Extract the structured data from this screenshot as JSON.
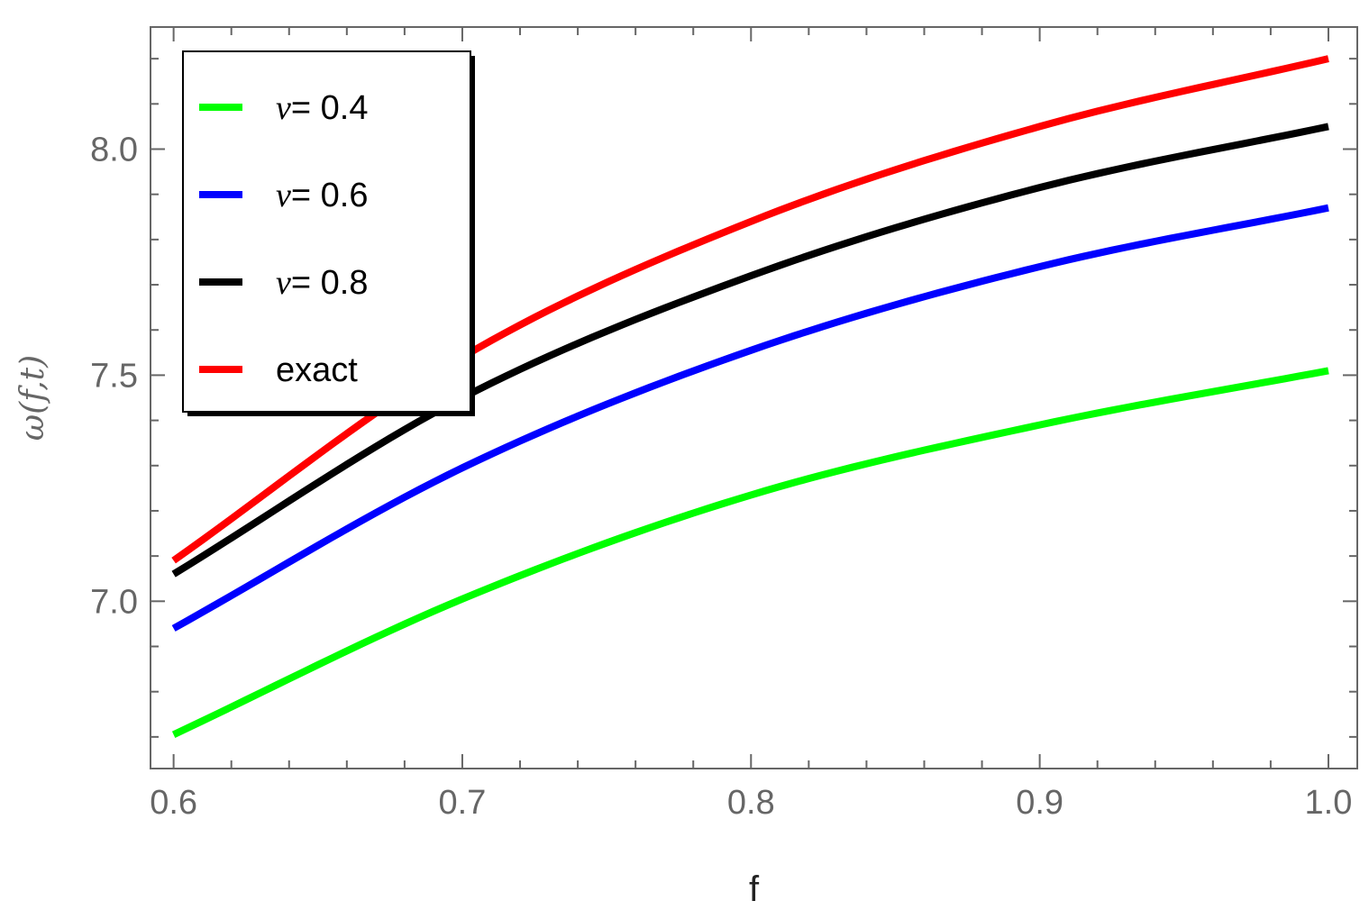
{
  "chart_data": {
    "type": "line",
    "xlabel": "f",
    "ylabel": "ω(f,t)",
    "xlim": [
      0.592,
      1.01
    ],
    "ylim": [
      6.63,
      8.27
    ],
    "x_ticks": [
      0.6,
      0.7,
      0.8,
      0.9,
      1.0
    ],
    "x_tick_labels": [
      "0.6",
      "0.7",
      "0.8",
      "0.9",
      "1.0"
    ],
    "y_ticks": [
      7.0,
      7.5,
      8.0
    ],
    "y_tick_labels": [
      "7.0",
      "7.5",
      "8.0"
    ],
    "x_minor_step": 0.02,
    "y_minor_step": 0.1,
    "grid": false,
    "legend_position": "top-left",
    "x": [
      0.6,
      0.7,
      0.8,
      0.9,
      1.0
    ],
    "series": [
      {
        "name": "v= 0.4",
        "name_prefix": "v",
        "name_suffix": "= 0.4",
        "color": "#00ff00",
        "values": [
          6.705,
          7.005,
          7.235,
          7.39,
          7.51
        ]
      },
      {
        "name": "v= 0.6",
        "name_prefix": "v",
        "name_suffix": "= 0.6",
        "color": "#0000ff",
        "values": [
          6.94,
          7.295,
          7.555,
          7.74,
          7.87
        ]
      },
      {
        "name": "v= 0.8",
        "name_prefix": "v",
        "name_suffix": "= 0.8",
        "color": "#000000",
        "values": [
          7.06,
          7.45,
          7.72,
          7.915,
          8.05
        ]
      },
      {
        "name": "exact",
        "name_prefix": "",
        "name_suffix": "exact",
        "color": "#ff0000",
        "values": [
          7.09,
          7.54,
          7.84,
          8.05,
          8.2
        ]
      }
    ]
  }
}
